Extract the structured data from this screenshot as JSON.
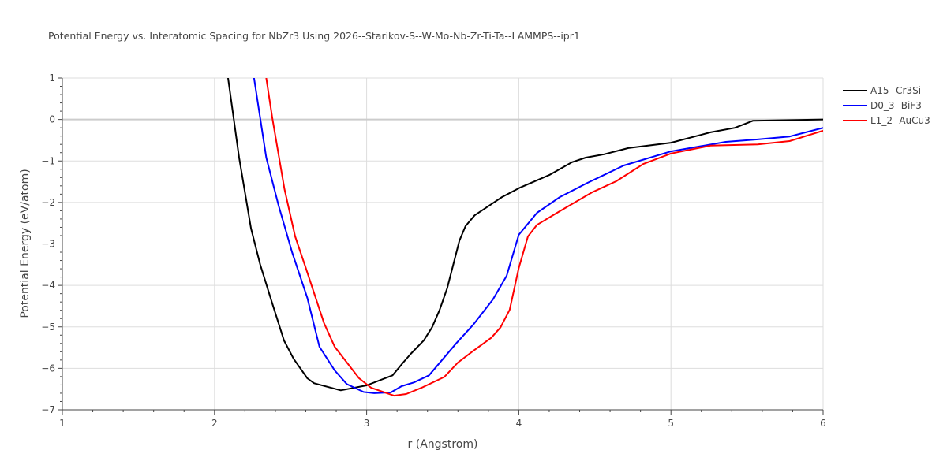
{
  "chart_data": {
    "type": "line",
    "title": "Potential Energy vs. Interatomic Spacing for NbZr3 Using 2026--Starikov-S--W-Mo-Nb-Zr-Ti-Ta--LAMMPS--ipr1",
    "xlabel": "r (Angstrom)",
    "ylabel": "Potential Energy (eV/atom)",
    "xlim": [
      1,
      6
    ],
    "ylim": [
      -7,
      1
    ],
    "xticks": [
      1,
      2,
      3,
      4,
      5,
      6
    ],
    "yticks": [
      1,
      0,
      -1,
      -2,
      -3,
      -4,
      -5,
      -6,
      -7
    ],
    "xtick_labels": [
      "1",
      "2",
      "3",
      "4",
      "5",
      "6"
    ],
    "ytick_labels": [
      "1",
      "0",
      "−1",
      "−2",
      "−3",
      "−4",
      "−5",
      "−6",
      "−7"
    ],
    "grid": true,
    "legend_position": "top-right",
    "series": [
      {
        "name": "A15--Cr3Si",
        "color": "#000000",
        "x": [
          2.03,
          2.089,
          2.162,
          2.24,
          2.3,
          2.38,
          2.457,
          2.52,
          2.61,
          2.655,
          2.83,
          3.0,
          3.17,
          3.24,
          3.29,
          3.375,
          3.43,
          3.48,
          3.53,
          3.61,
          3.65,
          3.71,
          3.89,
          4.01,
          4.2,
          4.35,
          4.44,
          4.56,
          4.72,
          5.0,
          5.26,
          5.42,
          5.54,
          6.0
        ],
        "y": [
          2.2,
          1,
          -0.92,
          -2.63,
          -3.49,
          -4.44,
          -5.33,
          -5.77,
          -6.24,
          -6.36,
          -6.53,
          -6.41,
          -6.17,
          -5.86,
          -5.65,
          -5.33,
          -5.01,
          -4.59,
          -4.06,
          -2.92,
          -2.57,
          -2.31,
          -1.87,
          -1.64,
          -1.34,
          -1.03,
          -0.92,
          -0.84,
          -0.69,
          -0.56,
          -0.31,
          -0.2,
          -0.03,
          0
        ]
      },
      {
        "name": "D0_3--BiF3",
        "color": "#0000ff",
        "x": [
          2.22,
          2.26,
          2.34,
          2.42,
          2.51,
          2.61,
          2.69,
          2.79,
          2.87,
          2.98,
          3.05,
          3.16,
          3.23,
          3.31,
          3.41,
          3.59,
          3.7,
          3.83,
          3.92,
          4.0,
          4.12,
          4.27,
          4.45,
          4.69,
          5.0,
          5.36,
          5.57,
          5.78,
          6.0
        ],
        "y": [
          2.2,
          1,
          -0.92,
          -2.06,
          -3.2,
          -4.3,
          -5.48,
          -6.05,
          -6.38,
          -6.57,
          -6.6,
          -6.58,
          -6.43,
          -6.34,
          -6.17,
          -5.39,
          -4.95,
          -4.34,
          -3.77,
          -2.78,
          -2.25,
          -1.87,
          -1.53,
          -1.11,
          -0.77,
          -0.54,
          -0.48,
          -0.41,
          -0.2
        ]
      },
      {
        "name": "L1_2--AuCu3",
        "color": "#ff0000",
        "x": [
          2.3,
          2.34,
          2.38,
          2.46,
          2.53,
          2.6,
          2.72,
          2.79,
          2.95,
          3.03,
          3.18,
          3.26,
          3.36,
          3.51,
          3.6,
          3.7,
          3.82,
          3.88,
          3.94,
          4.0,
          4.06,
          4.12,
          4.27,
          4.48,
          4.64,
          4.82,
          5.0,
          5.26,
          5.57,
          5.78,
          6.0
        ],
        "y": [
          2.2,
          1,
          0.03,
          -1.68,
          -2.82,
          -3.58,
          -4.91,
          -5.48,
          -6.24,
          -6.47,
          -6.66,
          -6.62,
          -6.47,
          -6.21,
          -5.86,
          -5.58,
          -5.26,
          -5.01,
          -4.59,
          -3.58,
          -2.82,
          -2.54,
          -2.21,
          -1.76,
          -1.49,
          -1.07,
          -0.82,
          -0.63,
          -0.6,
          -0.52,
          -0.27
        ]
      }
    ]
  }
}
